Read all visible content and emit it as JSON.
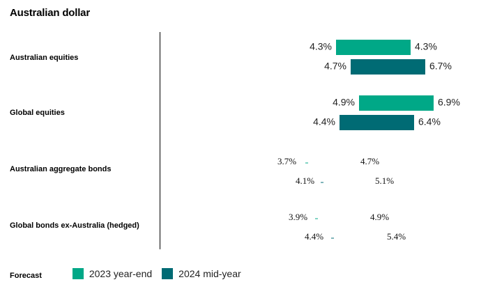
{
  "chart_data": {
    "type": "bar",
    "title": "Australian dollar",
    "categories": [
      "Australian equities",
      "Global equities",
      "Australian aggregate bonds",
      "Global bonds ex-Australia (hedged)"
    ],
    "x_range": [
      0,
      10
    ],
    "series": [
      {
        "name": "2023 year-end",
        "color": "#00a887",
        "low_labels": [
          "4.3%",
          "4.9%",
          "3.7%",
          "3.9%"
        ],
        "high_labels": [
          "4.3%",
          "6.9%",
          "4.7%",
          "4.9%"
        ],
        "low": [
          4.3,
          4.9,
          3.7,
          3.9
        ],
        "high": [
          4.3,
          6.9,
          4.7,
          4.9
        ]
      },
      {
        "name": "2024 mid-year",
        "color": "#006b74",
        "low_labels": [
          "4.7%",
          "4.4%",
          "4.1%",
          "4.4%"
        ],
        "high_labels": [
          "6.7%",
          "6.4%",
          "5.1%",
          "5.4%"
        ],
        "low": [
          4.7,
          4.4,
          4.1,
          4.4
        ],
        "high": [
          6.7,
          6.4,
          5.1,
          5.4
        ]
      }
    ],
    "legend": {
      "label": "Forecast",
      "position": "bottom-left"
    }
  }
}
